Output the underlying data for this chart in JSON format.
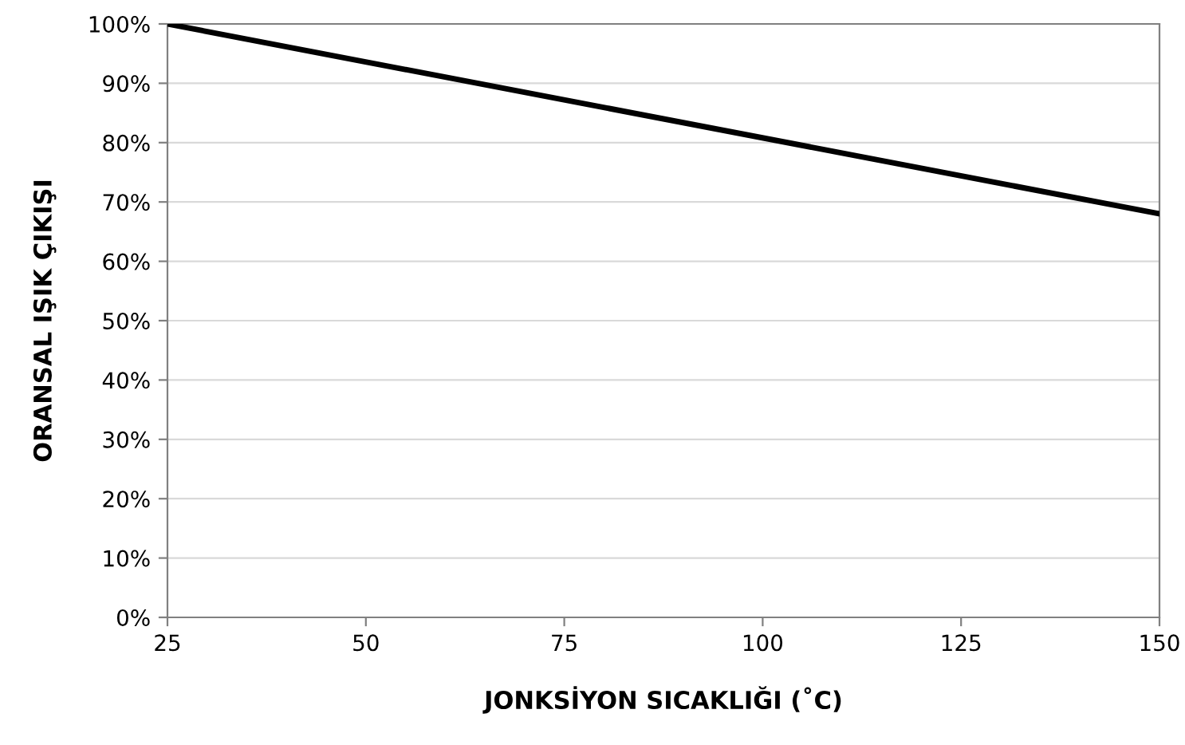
{
  "chart_data": {
    "type": "line",
    "xlabel": "JONKSİYON SICAKLIĞI (˚C)",
    "ylabel": "ORANSAL IŞIK ÇIKIŞI",
    "x": [
      25,
      150
    ],
    "series": [
      {
        "color": "#000000",
        "values": [
          100,
          68
        ]
      }
    ],
    "xlim": [
      25,
      150
    ],
    "xticks": [
      25,
      50,
      75,
      100,
      125,
      150
    ],
    "ylim": [
      0,
      100
    ],
    "yticks": [
      {
        "value": 0,
        "label": "0%"
      },
      {
        "value": 10,
        "label": "10%"
      },
      {
        "value": 20,
        "label": "20%"
      },
      {
        "value": 30,
        "label": "30%"
      },
      {
        "value": 40,
        "label": "40%"
      },
      {
        "value": 50,
        "label": "50%"
      },
      {
        "value": 60,
        "label": "60%"
      },
      {
        "value": 70,
        "label": "70%"
      },
      {
        "value": 80,
        "label": "80%"
      },
      {
        "value": 90,
        "label": "90%"
      },
      {
        "value": 100,
        "label": "100%"
      }
    ],
    "grid": "y",
    "marker": "none",
    "line_style": "solid"
  }
}
